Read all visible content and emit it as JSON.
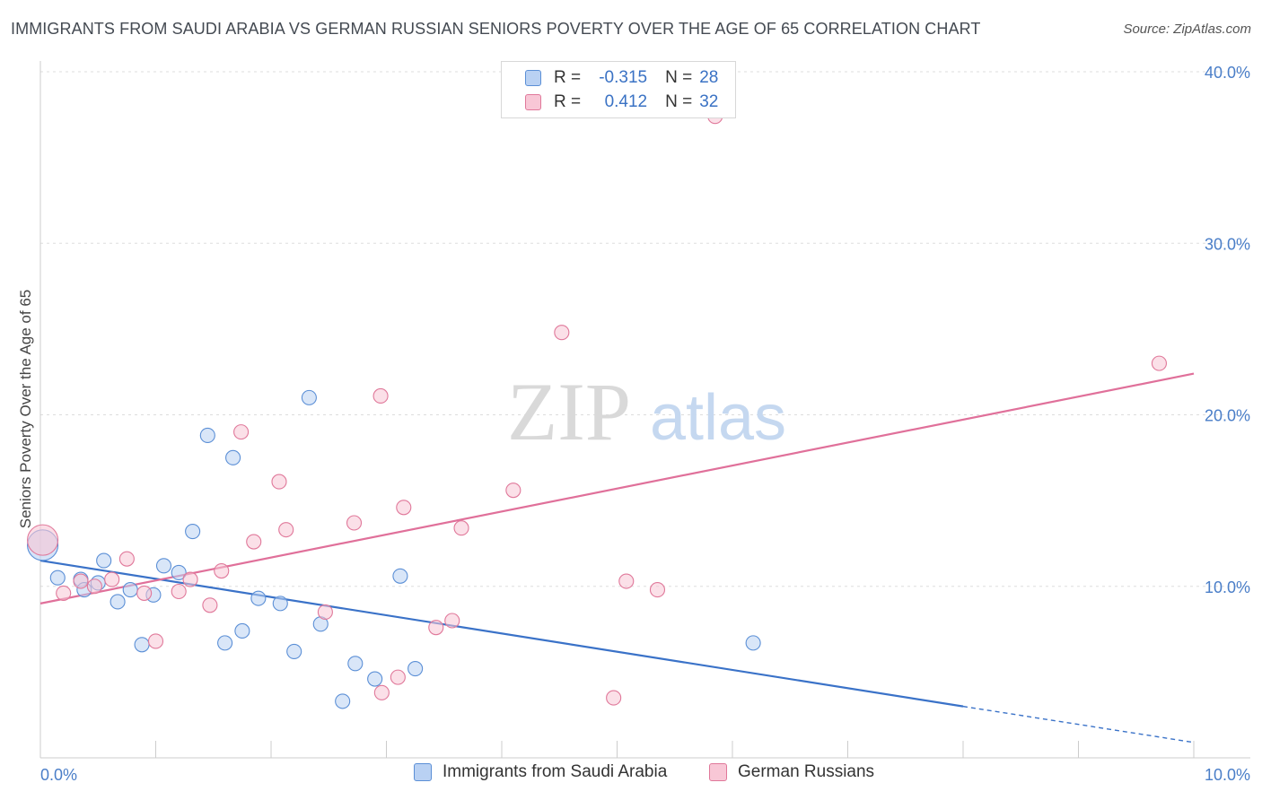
{
  "title": "IMMIGRANTS FROM SAUDI ARABIA VS GERMAN RUSSIAN SENIORS POVERTY OVER THE AGE OF 65 CORRELATION CHART",
  "source": "Source: ZipAtlas.com",
  "watermark": {
    "zip": "ZIP",
    "atlas": "atlas"
  },
  "legend": {
    "r_label": "R =",
    "n_label": "N =",
    "rows": [
      {
        "r": "-0.315",
        "n": "28"
      },
      {
        "r": "0.412",
        "n": "32"
      }
    ]
  },
  "chart_data": {
    "type": "scatter",
    "title": "IMMIGRANTS FROM SAUDI ARABIA VS GERMAN RUSSIAN SENIORS POVERTY OVER THE AGE OF 65 CORRELATION CHART",
    "xlabel": "",
    "ylabel": "Seniors Poverty Over the Age of 65",
    "xlim": [
      0,
      10
    ],
    "ylim": [
      0,
      40
    ],
    "y_ticks": [
      {
        "value": 10,
        "label": "10.0%"
      },
      {
        "value": 20,
        "label": "20.0%"
      },
      {
        "value": 30,
        "label": "30.0%"
      },
      {
        "value": 40,
        "label": "40.0%"
      }
    ],
    "x_tick_labels": [
      {
        "value": 0,
        "label": "0.0%"
      },
      {
        "value": 10,
        "label": "10.0%"
      }
    ],
    "grid": true,
    "legend_position": "top-center",
    "series": [
      {
        "name": "Immigrants from Saudi Arabia",
        "color": "#5b8fd6",
        "fill": "#b9d1f3",
        "r": -0.315,
        "n": 28,
        "trend": {
          "x0": 0,
          "y0": 11.5,
          "x1": 8.0,
          "y1": 3.0,
          "dash_to_x": 10.0,
          "dash_to_y": 0.9
        },
        "points": [
          [
            0.02,
            12.4
          ],
          [
            0.15,
            10.5
          ],
          [
            0.35,
            10.4
          ],
          [
            0.38,
            9.8
          ],
          [
            0.5,
            10.2
          ],
          [
            0.55,
            11.5
          ],
          [
            0.67,
            9.1
          ],
          [
            0.78,
            9.8
          ],
          [
            0.88,
            6.6
          ],
          [
            0.98,
            9.5
          ],
          [
            1.07,
            11.2
          ],
          [
            1.2,
            10.8
          ],
          [
            1.32,
            13.2
          ],
          [
            1.45,
            18.8
          ],
          [
            1.6,
            6.7
          ],
          [
            1.67,
            17.5
          ],
          [
            1.75,
            7.4
          ],
          [
            1.89,
            9.3
          ],
          [
            2.08,
            9.0
          ],
          [
            2.2,
            6.2
          ],
          [
            2.33,
            21.0
          ],
          [
            2.43,
            7.8
          ],
          [
            2.62,
            3.3
          ],
          [
            2.73,
            5.5
          ],
          [
            2.9,
            4.6
          ],
          [
            3.12,
            10.6
          ],
          [
            3.25,
            5.2
          ],
          [
            6.18,
            6.7
          ]
        ]
      },
      {
        "name": "German Russians",
        "color": "#e0789a",
        "fill": "#f8c7d6",
        "r": 0.412,
        "n": 32,
        "trend": {
          "x0": 0,
          "y0": 9.0,
          "x1": 10.0,
          "y1": 22.4
        },
        "points": [
          [
            0.02,
            12.7
          ],
          [
            0.2,
            9.6
          ],
          [
            0.35,
            10.3
          ],
          [
            0.47,
            10.0
          ],
          [
            0.62,
            10.4
          ],
          [
            0.75,
            11.6
          ],
          [
            0.9,
            9.6
          ],
          [
            1.0,
            6.8
          ],
          [
            1.2,
            9.7
          ],
          [
            1.3,
            10.4
          ],
          [
            1.47,
            8.9
          ],
          [
            1.57,
            10.9
          ],
          [
            1.74,
            19.0
          ],
          [
            1.85,
            12.6
          ],
          [
            2.07,
            16.1
          ],
          [
            2.13,
            13.3
          ],
          [
            2.47,
            8.5
          ],
          [
            2.72,
            13.7
          ],
          [
            2.95,
            21.1
          ],
          [
            2.96,
            3.8
          ],
          [
            3.1,
            4.7
          ],
          [
            3.15,
            14.6
          ],
          [
            3.43,
            7.6
          ],
          [
            3.57,
            8.0
          ],
          [
            3.65,
            13.4
          ],
          [
            4.1,
            15.6
          ],
          [
            4.52,
            24.8
          ],
          [
            4.97,
            3.5
          ],
          [
            5.08,
            10.3
          ],
          [
            5.35,
            9.8
          ],
          [
            5.85,
            37.4
          ],
          [
            9.7,
            23.0
          ]
        ]
      }
    ]
  }
}
